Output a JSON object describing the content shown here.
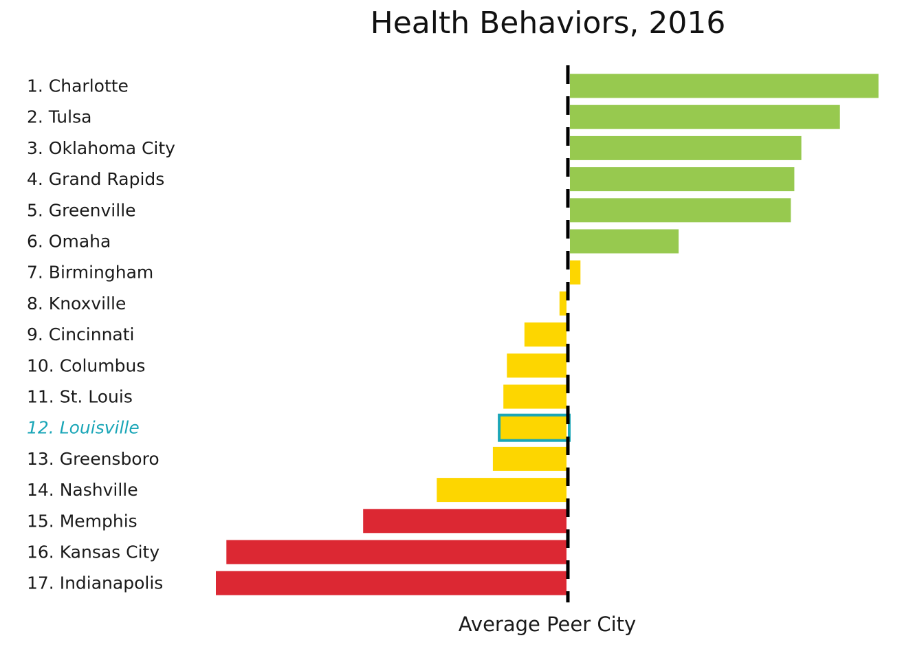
{
  "chart_data": {
    "type": "bar",
    "orientation": "horizontal",
    "title": "Health Behaviors, 2016",
    "xlabel": "Average Peer City",
    "ylabel": "",
    "baseline": 0,
    "xlim": [
      -1.0,
      0.88
    ],
    "categories": [
      "1. Charlotte",
      "2. Tulsa",
      "3. Oklahoma City",
      "4. Grand Rapids",
      "5. Greenville",
      "6. Omaha",
      "7. Birmingham",
      "8. Knoxville",
      "9. Cincinnati",
      "10. Columbus",
      "11. St. Louis",
      "12. Louisville",
      "13. Greensboro",
      "14. Nashville",
      "15. Memphis",
      "16. Kansas City",
      "17. Indianapolis"
    ],
    "values": [
      0.88,
      0.77,
      0.66,
      0.64,
      0.63,
      0.31,
      0.03,
      -0.02,
      -0.12,
      -0.17,
      -0.18,
      -0.19,
      -0.21,
      -0.37,
      -0.58,
      -0.97,
      -1.0
    ],
    "tiers": [
      "good",
      "good",
      "good",
      "good",
      "good",
      "good",
      "mid",
      "mid",
      "mid",
      "mid",
      "mid",
      "mid",
      "mid",
      "mid",
      "bad",
      "bad",
      "bad"
    ],
    "highlight": "12. Louisville",
    "colors": {
      "good": "#97c94f",
      "mid": "#fdd600",
      "bad": "#dc2833",
      "highlight": "#1aa6b7",
      "reference_line": "#000000"
    },
    "reference_line": "dashed"
  }
}
